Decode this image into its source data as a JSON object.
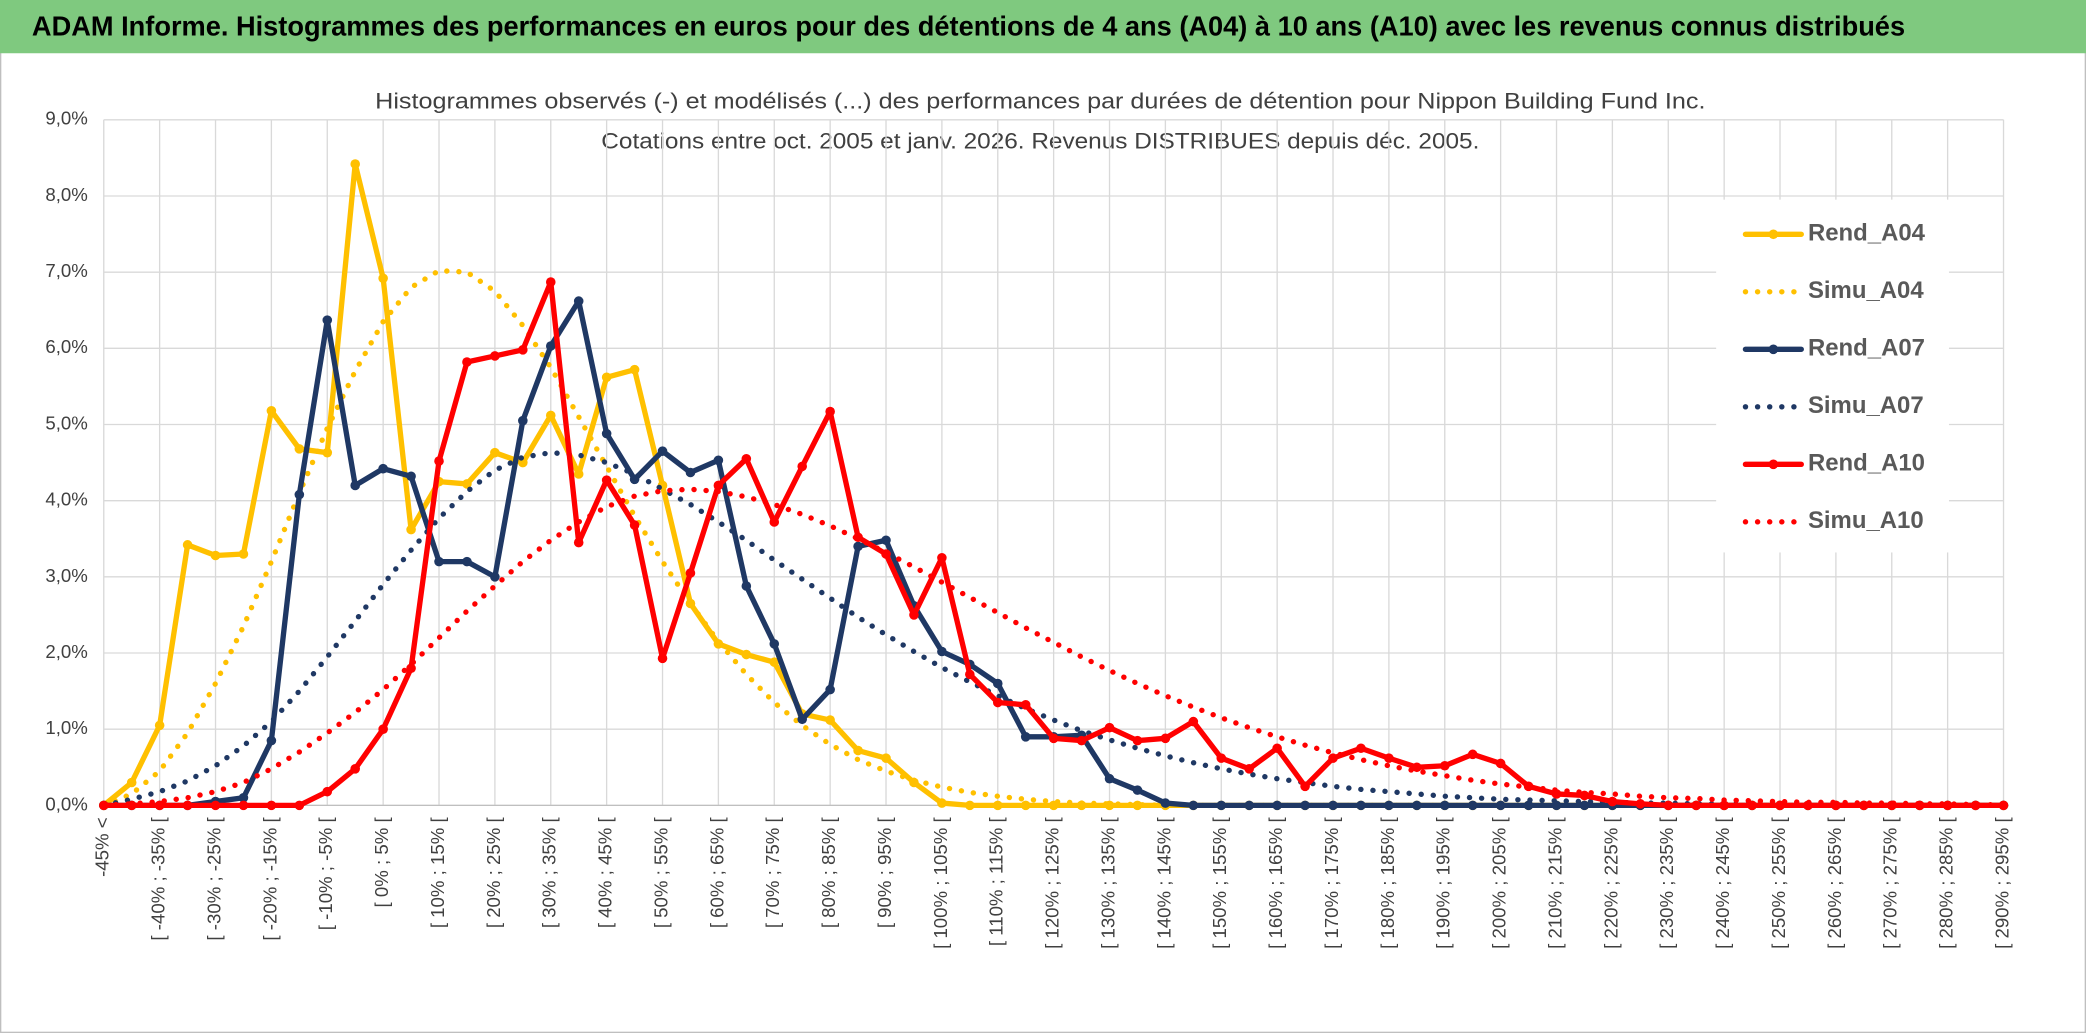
{
  "header": {
    "title": "ADAM Informe. Histogrammes des performances en euros pour des détentions de 4 ans (A04) à 10 ans (A10) avec les revenus connus distribués"
  },
  "chart_data": {
    "type": "line",
    "title": "Histogrammes observés (-) et modélisés (...) des performances par durées de détention pour Nippon Building Fund Inc.",
    "subtitle": "Cotations entre oct. 2005 et janv. 2026. Revenus DISTRIBUES depuis déc. 2005.",
    "categories": [
      "-45% <",
      null,
      "[ -40% ; -35% [",
      null,
      "[ -30% ; -25% [",
      null,
      "[ -20% ; -15% [",
      null,
      "[ -10% ; -5% [",
      null,
      "[ 0% ; 5% [",
      null,
      "[ 10% ; 15% [",
      null,
      "[ 20% ; 25% [",
      null,
      "[ 30% ; 35% [",
      null,
      "[ 40% ; 45% [",
      null,
      "[ 50% ; 55% [",
      null,
      "[ 60% ; 65% [",
      null,
      "[ 70% ; 75% [",
      null,
      "[ 80% ; 85% [",
      null,
      "[ 90% ; 95% [",
      null,
      "[ 100% ; 105% [",
      null,
      "[ 110% ; 115% [",
      null,
      "[ 120% ; 125% [",
      null,
      "[ 130% ; 135% [",
      null,
      "[ 140% ; 145% [",
      null,
      "[ 150% ; 155% [",
      null,
      "[ 160% ; 165% [",
      null,
      "[ 170% ; 175% [",
      null,
      "[ 180% ; 185% [",
      null,
      "[ 190% ; 195% [",
      null,
      "[ 200% ; 205% [",
      null,
      "[ 210% ; 215% [",
      null,
      "[ 220% ; 225% [",
      null,
      "[ 230% ; 235% [",
      null,
      "[ 240% ; 245% [",
      null,
      "[ 250% ; 255% [",
      null,
      "[ 260% ; 265% [",
      null,
      "[ 270% ; 275% [",
      null,
      "[ 280% ; 285% [",
      null,
      "[ 290% ; 295% ["
    ],
    "series": [
      {
        "name": "Rend_A04",
        "color": "#ffc000",
        "dash": "solid",
        "values": [
          0,
          0.3,
          1.05,
          3.42,
          3.28,
          3.3,
          5.18,
          4.68,
          4.63,
          8.42,
          6.92,
          3.62,
          4.25,
          4.22,
          4.63,
          4.5,
          5.12,
          4.35,
          5.62,
          5.72,
          4.2,
          2.65,
          2.12,
          1.98,
          1.88,
          1.2,
          1.12,
          0.72,
          0.62,
          0.3,
          0.03,
          0,
          0,
          0,
          0,
          0,
          0,
          0,
          0,
          0,
          0,
          0,
          0,
          0,
          0,
          0,
          0,
          0,
          0,
          0,
          0,
          0,
          0,
          0,
          0,
          0,
          0,
          0,
          0,
          0,
          0,
          0,
          0,
          0,
          0,
          0,
          0,
          0,
          0
        ]
      },
      {
        "name": "Simu_A04",
        "color": "#ffc000",
        "dash": "dotted",
        "values": [
          0,
          0.15,
          0.45,
          0.95,
          1.6,
          2.35,
          3.2,
          4.1,
          4.95,
          5.7,
          6.35,
          6.8,
          7.02,
          7.0,
          6.75,
          6.3,
          5.75,
          5.1,
          4.45,
          3.8,
          3.2,
          2.65,
          2.15,
          1.72,
          1.35,
          1.05,
          0.8,
          0.6,
          0.45,
          0.33,
          0.24,
          0.17,
          0.12,
          0.08,
          0.05,
          0.03,
          0.02,
          0.01,
          0,
          0,
          0,
          0,
          0,
          0,
          0,
          0,
          0,
          0,
          0,
          0,
          0,
          0,
          0,
          0,
          0,
          0,
          0,
          0,
          0,
          0,
          0,
          0,
          0,
          0,
          0,
          0,
          0,
          0,
          0
        ]
      },
      {
        "name": "Rend_A07",
        "color": "#1f3864",
        "dash": "solid",
        "values": [
          0,
          0,
          0,
          0,
          0.05,
          0.1,
          0.85,
          4.08,
          6.37,
          4.2,
          4.42,
          4.32,
          3.2,
          3.2,
          3.0,
          5.05,
          6.03,
          6.62,
          4.88,
          4.28,
          4.65,
          4.37,
          4.53,
          2.88,
          2.12,
          1.13,
          1.52,
          3.4,
          3.48,
          2.62,
          2.02,
          1.85,
          1.6,
          0.9,
          0.9,
          0.92,
          0.35,
          0.2,
          0.03,
          0,
          0,
          0,
          0,
          0,
          0,
          0,
          0,
          0,
          0,
          0,
          0,
          0,
          0,
          0,
          0,
          0,
          0,
          0,
          0,
          0,
          0,
          0,
          0,
          0,
          0,
          0,
          0,
          0,
          0
        ]
      },
      {
        "name": "Simu_A07",
        "color": "#1f3864",
        "dash": "dotted",
        "values": [
          0,
          0.08,
          0.18,
          0.32,
          0.52,
          0.78,
          1.1,
          1.5,
          1.95,
          2.42,
          2.9,
          3.35,
          3.77,
          4.12,
          4.4,
          4.57,
          4.63,
          4.6,
          4.5,
          4.35,
          4.15,
          3.95,
          3.72,
          3.48,
          3.22,
          2.97,
          2.72,
          2.47,
          2.24,
          2.02,
          1.81,
          1.62,
          1.44,
          1.27,
          1.12,
          0.98,
          0.86,
          0.75,
          0.65,
          0.56,
          0.48,
          0.41,
          0.35,
          0.3,
          0.25,
          0.21,
          0.18,
          0.15,
          0.12,
          0.1,
          0.08,
          0.07,
          0.06,
          0.05,
          0.04,
          0.03,
          0.03,
          0.02,
          0.02,
          0.01,
          0.01,
          0,
          0,
          0,
          0,
          0,
          0,
          0,
          0
        ]
      },
      {
        "name": "Rend_A10",
        "color": "#ff0000",
        "dash": "solid",
        "values": [
          0,
          0,
          0,
          0,
          0,
          0,
          0,
          0,
          0.18,
          0.48,
          1.0,
          1.8,
          4.52,
          5.82,
          5.9,
          5.98,
          6.87,
          3.45,
          4.27,
          3.68,
          1.93,
          3.05,
          4.2,
          4.55,
          3.72,
          4.45,
          5.17,
          3.52,
          3.3,
          2.5,
          3.25,
          1.72,
          1.35,
          1.32,
          0.88,
          0.85,
          1.02,
          0.85,
          0.88,
          1.1,
          0.62,
          0.48,
          0.75,
          0.25,
          0.62,
          0.75,
          0.62,
          0.5,
          0.52,
          0.67,
          0.55,
          0.25,
          0.15,
          0.13,
          0.05,
          0.02,
          0,
          0,
          0,
          0,
          0,
          0,
          0,
          0,
          0,
          0,
          0,
          0,
          0
        ]
      },
      {
        "name": "Simu_A10",
        "color": "#ff0000",
        "dash": "dotted",
        "values": [
          0,
          0.02,
          0.05,
          0.1,
          0.18,
          0.3,
          0.48,
          0.7,
          0.95,
          1.22,
          1.52,
          1.85,
          2.2,
          2.55,
          2.88,
          3.2,
          3.48,
          3.72,
          3.92,
          4.06,
          4.13,
          4.15,
          4.12,
          4.05,
          3.95,
          3.82,
          3.67,
          3.5,
          3.32,
          3.13,
          2.93,
          2.73,
          2.53,
          2.33,
          2.14,
          1.95,
          1.77,
          1.6,
          1.44,
          1.29,
          1.15,
          1.02,
          0.9,
          0.79,
          0.69,
          0.6,
          0.52,
          0.45,
          0.39,
          0.33,
          0.28,
          0.24,
          0.2,
          0.17,
          0.15,
          0.12,
          0.1,
          0.09,
          0.07,
          0.06,
          0.05,
          0.04,
          0.04,
          0.03,
          0.03,
          0.02,
          0.02,
          0.01,
          0.01
        ]
      }
    ],
    "ylim": [
      0,
      9
    ],
    "yticks": [
      {
        "value": 0,
        "label": "0,0%"
      },
      {
        "value": 1,
        "label": "1,0%"
      },
      {
        "value": 2,
        "label": "2,0%"
      },
      {
        "value": 3,
        "label": "3,0%"
      },
      {
        "value": 4,
        "label": "4,0%"
      },
      {
        "value": 5,
        "label": "5,0%"
      },
      {
        "value": 6,
        "label": "6,0%"
      },
      {
        "value": 7,
        "label": "7,0%"
      },
      {
        "value": 8,
        "label": "8,0%"
      },
      {
        "value": 9,
        "label": "9,0%"
      }
    ],
    "grid": true,
    "legend": "right"
  }
}
